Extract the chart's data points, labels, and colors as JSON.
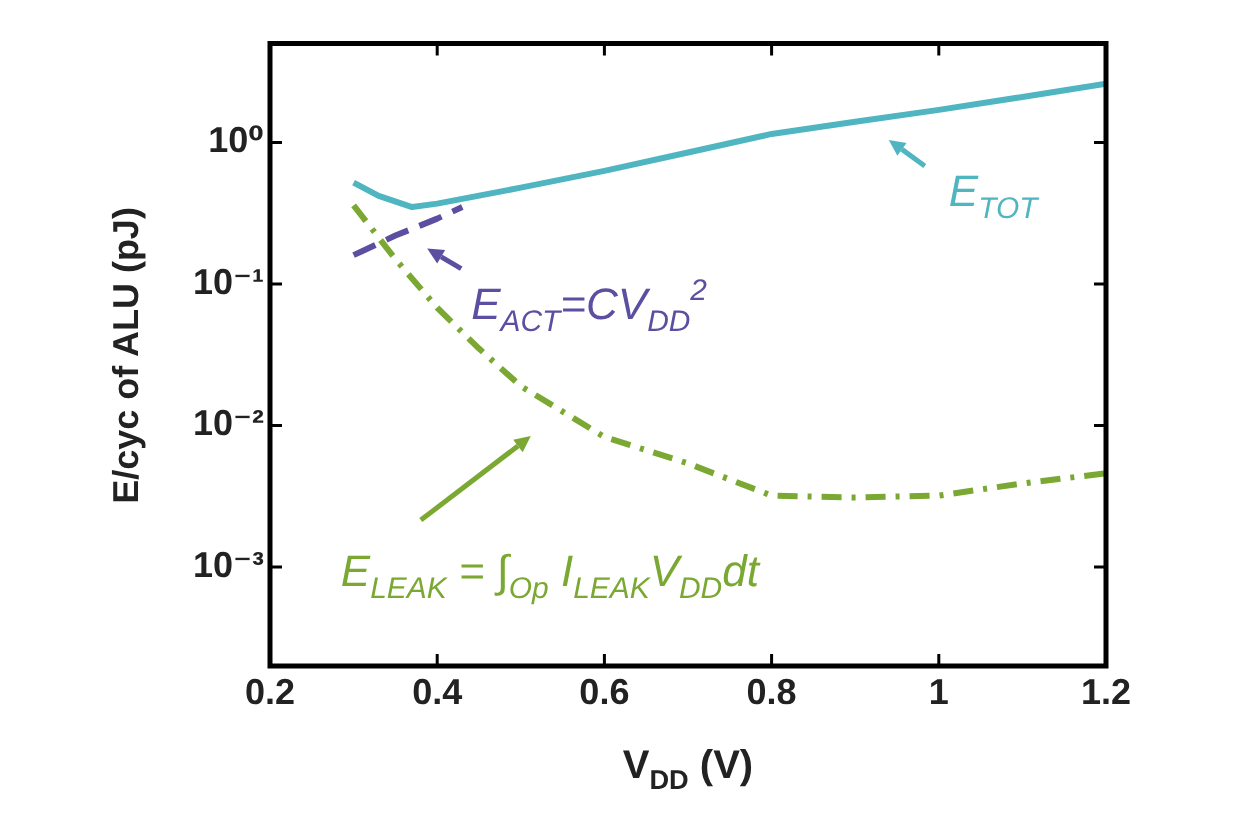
{
  "chart_data": {
    "type": "line",
    "xlabel": "V$_{DD}$ (V)",
    "ylabel": "E/cyc of ALU (pJ)",
    "log": "y",
    "grid": false,
    "legend": "right",
    "marker": "none",
    "xlim": [
      0.2,
      1.2
    ],
    "xticks": [
      0.2,
      0.4,
      0.6,
      0.8,
      1,
      1.2
    ],
    "ylim": [
      0.0002,
      5
    ],
    "yticks": [
      {
        "value": 1,
        "label": "10⁰"
      },
      {
        "value": 0.1,
        "label": "10⁻¹"
      },
      {
        "value": 0.01,
        "label": "10⁻²"
      },
      {
        "value": 0.001,
        "label": "10⁻³"
      }
    ],
    "series": [
      {
        "name": "E$_{TOT}$",
        "color": "#4fb5c0",
        "line_style": "solid",
        "x": [
          0.3,
          0.33,
          0.37,
          0.4,
          0.5,
          0.6,
          0.7,
          0.8,
          0.9,
          1.0,
          1.1,
          1.2
        ],
        "values": [
          0.52,
          0.42,
          0.35,
          0.37,
          0.48,
          0.63,
          0.85,
          1.15,
          1.4,
          1.7,
          2.1,
          2.6
        ]
      },
      {
        "name": "E$_{ACT}$=CV$_{DD}$$^{2}$",
        "color": "#5a4fa0",
        "line_style": "dashed",
        "x": [
          0.3,
          0.35,
          0.4,
          0.43
        ],
        "values": [
          0.16,
          0.22,
          0.29,
          0.35
        ]
      },
      {
        "name": "E$_{LEAK}$ = ∫$_{Op}$ I$_{LEAK}$V$_{DD}$dt",
        "color": "#7aa832",
        "line_style": "dashdot",
        "x": [
          0.3,
          0.35,
          0.4,
          0.45,
          0.5,
          0.6,
          0.7,
          0.8,
          0.9,
          1.0,
          1.1,
          1.2
        ],
        "values": [
          0.36,
          0.15,
          0.068,
          0.035,
          0.019,
          0.0083,
          0.0054,
          0.0032,
          0.0031,
          0.0032,
          0.0039,
          0.0046
        ]
      }
    ]
  }
}
